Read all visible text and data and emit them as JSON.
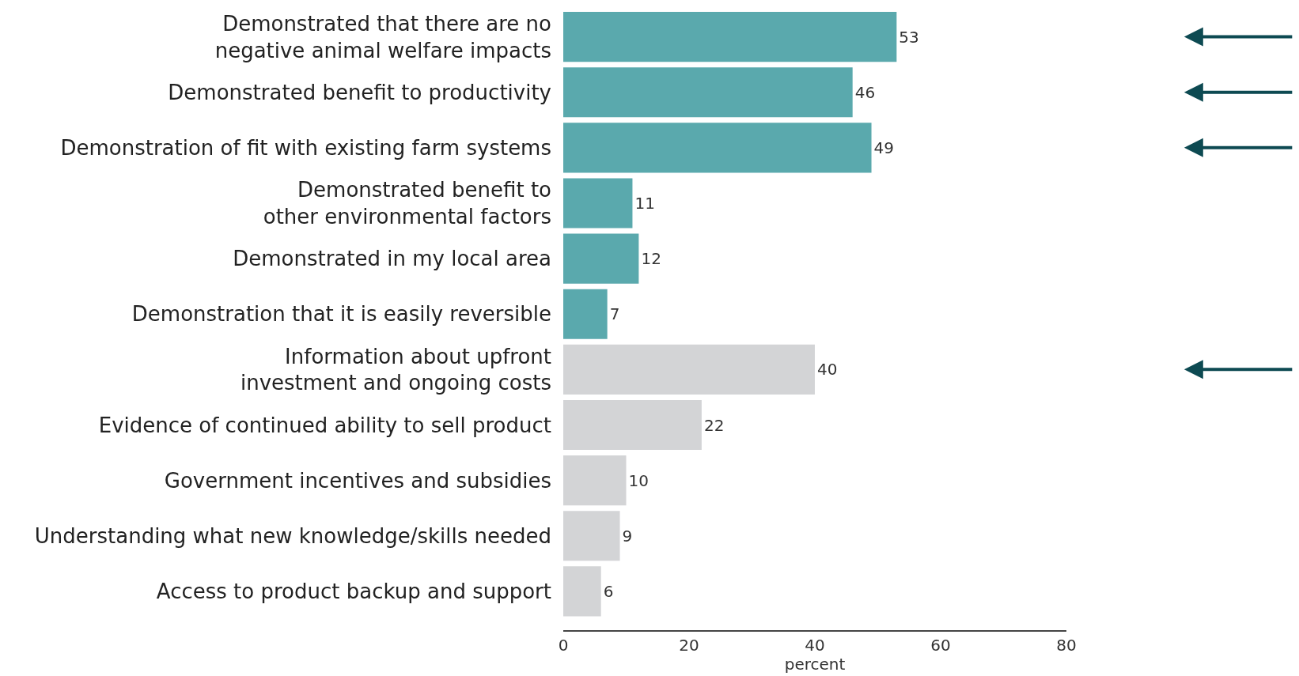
{
  "chart_data": {
    "type": "bar",
    "orientation": "horizontal",
    "xlabel": "percent",
    "categories": [
      "Demonstrated that there are no\nnegative animal welfare impacts",
      "Demonstrated benefit to productivity",
      "Demonstration of fit with existing farm systems",
      "Demonstrated benefit to\nother environmental factors",
      "Demonstrated in my local area",
      "Demonstration that it is easily reversible",
      "Information about upfront\ninvestment and ongoing costs",
      "Evidence of continued ability to sell product",
      "Government incentives and subsidies",
      "Understanding what new knowledge/skills needed",
      "Access to product backup and support"
    ],
    "values": [
      53,
      46,
      49,
      11,
      12,
      7,
      40,
      22,
      10,
      9,
      6
    ],
    "colors": [
      "#5aa9ad",
      "#5aa9ad",
      "#5aa9ad",
      "#5aa9ad",
      "#5aa9ad",
      "#5aa9ad",
      "#d3d4d6",
      "#d3d4d6",
      "#d3d4d6",
      "#d3d4d6",
      "#d3d4d6"
    ],
    "data_labels": true,
    "xlim": [
      0,
      80
    ],
    "xticks": [
      0,
      20,
      40,
      60,
      80
    ]
  }
}
